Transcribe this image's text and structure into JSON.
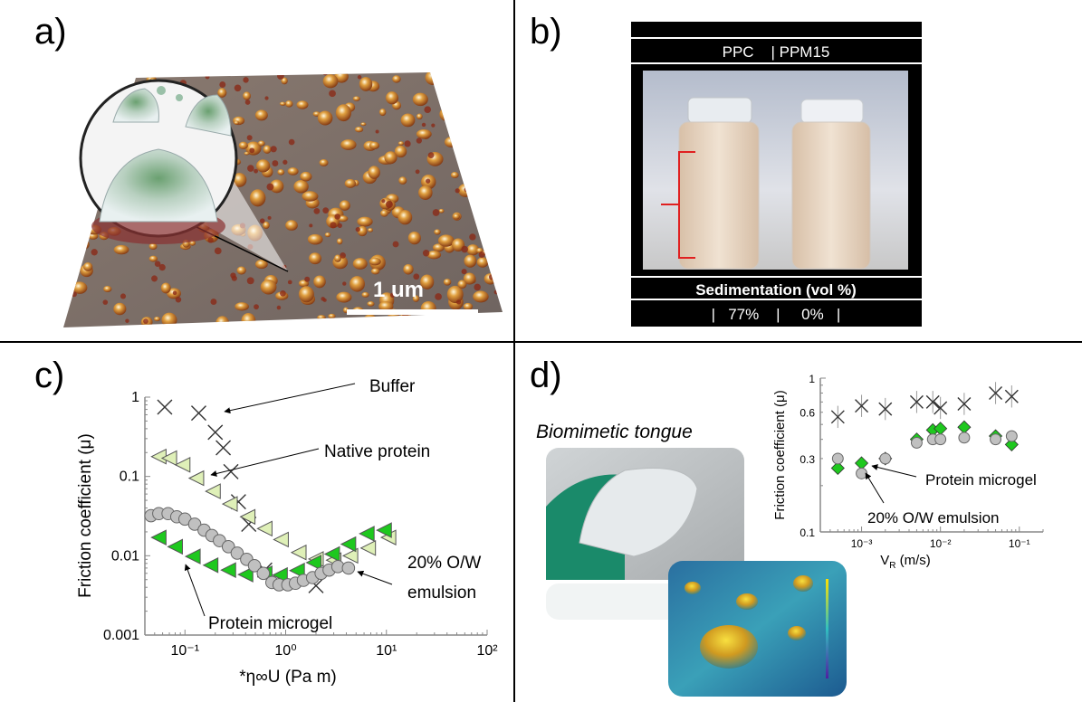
{
  "panels": {
    "a": {
      "label": "a)",
      "scale_bar_label": "1 um"
    },
    "b": {
      "label": "b)",
      "header": "PPC    | PPM15",
      "footer_title": "Sedimentation (vol %)",
      "footer_values": "|   77%    |     0%   |"
    },
    "c": {
      "label": "c)"
    },
    "d": {
      "label": "d)",
      "photo_caption": "Biomimetic tongue"
    }
  },
  "colors": {
    "buffer": "#333333",
    "native_protein": "#dff0b8",
    "protein_microgel": "#1ec81e",
    "emulsion": "#c0c0c0",
    "scale_bar": "#ffffff",
    "sediment_bracket": "#e02020"
  },
  "chart_data": [
    {
      "type": "scatter",
      "panel": "c",
      "xlabel": "*η∞U (Pa m)",
      "ylabel": "Friction coefficient (μ)",
      "xscale": "log",
      "yscale": "log",
      "xlim": [
        0.04,
        100
      ],
      "ylim": [
        0.001,
        1
      ],
      "xticks": [
        "10⁻¹",
        "10⁰",
        "10¹",
        "10²"
      ],
      "yticks": [
        "1",
        "0.1",
        "0.01",
        "0.001"
      ],
      "grid": false,
      "series": [
        {
          "name": "Buffer",
          "marker": "x",
          "x": [
            0.063,
            0.137,
            0.2,
            0.24,
            0.286,
            0.34,
            0.43,
            0.62,
            2.0
          ],
          "y": [
            0.75,
            0.63,
            0.36,
            0.23,
            0.115,
            0.048,
            0.025,
            0.0066,
            0.0042
          ]
        },
        {
          "name": "Native protein",
          "marker": "triangle-left-light",
          "x": [
            0.055,
            0.07,
            0.095,
            0.13,
            0.19,
            0.28,
            0.42,
            0.62,
            0.9,
            1.35,
            2.0,
            3.0,
            4.4,
            6.6,
            10.5
          ],
          "y": [
            0.178,
            0.17,
            0.14,
            0.095,
            0.065,
            0.045,
            0.031,
            0.022,
            0.016,
            0.011,
            0.0091,
            0.0088,
            0.01,
            0.0125,
            0.017
          ]
        },
        {
          "name": "Protein microgel",
          "marker": "triangle-left-green",
          "x": [
            0.055,
            0.08,
            0.12,
            0.18,
            0.27,
            0.4,
            0.62,
            0.88,
            1.3,
            1.9,
            2.9,
            4.2,
            6.4,
            9.5
          ],
          "y": [
            0.017,
            0.013,
            0.0098,
            0.0076,
            0.0066,
            0.0058,
            0.006,
            0.0057,
            0.0065,
            0.0082,
            0.0105,
            0.014,
            0.019,
            0.021
          ]
        },
        {
          "name": "20% O/W emulsion",
          "marker": "circle",
          "x": [
            0.046,
            0.055,
            0.068,
            0.083,
            0.1,
            0.125,
            0.155,
            0.185,
            0.22,
            0.27,
            0.33,
            0.41,
            0.49,
            0.6,
            0.73,
            0.86,
            1.05,
            1.25,
            1.5,
            1.85,
            2.25,
            2.7,
            3.3,
            4.2
          ],
          "y": [
            0.032,
            0.034,
            0.034,
            0.031,
            0.029,
            0.025,
            0.021,
            0.018,
            0.0155,
            0.013,
            0.0108,
            0.009,
            0.0075,
            0.006,
            0.0046,
            0.0043,
            0.0043,
            0.0045,
            0.0049,
            0.0053,
            0.006,
            0.0066,
            0.0073,
            0.007
          ]
        }
      ],
      "annotations": [
        "Buffer",
        "Native protein",
        "20% O/W",
        "emulsion",
        "Protein microgel"
      ]
    },
    {
      "type": "scatter",
      "panel": "d",
      "xlabel": "V",
      "xlabel_sub": "R",
      "xlabel_unit": " (m/s)",
      "ylabel": "Friction coefficient (μ)",
      "xscale": "log",
      "yscale": "log",
      "xlim": [
        0.0003,
        0.2
      ],
      "ylim": [
        0.1,
        1
      ],
      "xticks": [
        "10⁻³",
        "10⁻²",
        "10⁻¹"
      ],
      "yticks": [
        "1",
        "0.6",
        "0.3",
        "0.1"
      ],
      "grid": false,
      "series": [
        {
          "name": "Buffer",
          "marker": "x",
          "x": [
            0.0005,
            0.001,
            0.002,
            0.005,
            0.008,
            0.01,
            0.02,
            0.05,
            0.08
          ],
          "y": [
            0.56,
            0.66,
            0.63,
            0.7,
            0.7,
            0.64,
            0.68,
            0.8,
            0.76
          ]
        },
        {
          "name": "Protein microgel",
          "marker": "diamond",
          "x": [
            0.0005,
            0.001,
            0.002,
            0.005,
            0.008,
            0.01,
            0.02,
            0.05,
            0.08
          ],
          "y": [
            0.26,
            0.28,
            0.3,
            0.4,
            0.46,
            0.47,
            0.48,
            0.42,
            0.37
          ]
        },
        {
          "name": "20% O/W emulsion",
          "marker": "circle",
          "x": [
            0.0005,
            0.001,
            0.002,
            0.005,
            0.008,
            0.01,
            0.02,
            0.05,
            0.08
          ],
          "y": [
            0.3,
            0.24,
            0.3,
            0.38,
            0.4,
            0.4,
            0.41,
            0.4,
            0.42
          ]
        }
      ],
      "annotations": [
        "Protein microgel",
        "20% O/W emulsion"
      ]
    }
  ]
}
